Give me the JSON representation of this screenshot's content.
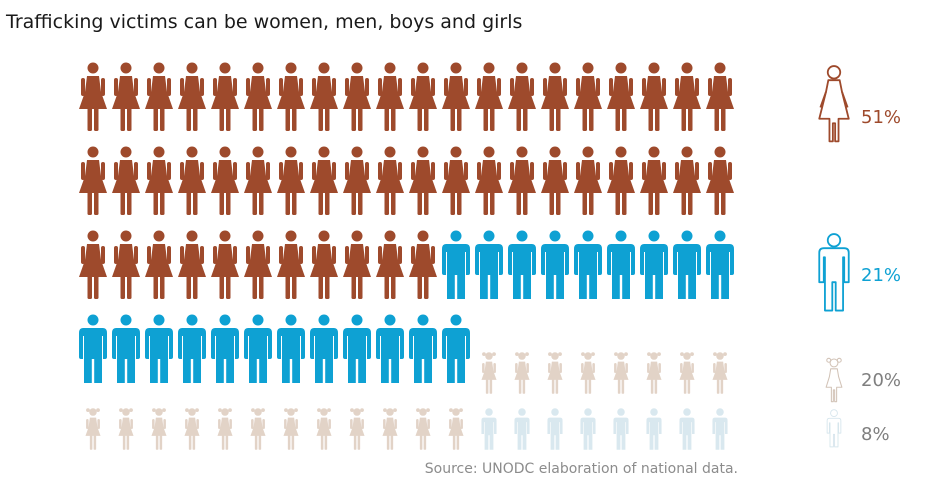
{
  "title": "Trafficking victims can be women, men, boys and girls",
  "source": "Source: UNODC elaboration of national data.",
  "colors": {
    "women": "#9e4a2c",
    "men": "#0ea1d3",
    "girls": "#e2d3c7",
    "boys": "#d9e8ef"
  },
  "chart_data": {
    "type": "pictogram",
    "total_icons": 100,
    "columns": 20,
    "categories": [
      "women",
      "men",
      "girls",
      "boys"
    ],
    "values": [
      51,
      21,
      20,
      8
    ],
    "labels": [
      "51%",
      "21%",
      "20%",
      "8%"
    ],
    "icons": [
      "woman-icon",
      "man-icon",
      "girl-icon",
      "boy-icon"
    ],
    "unit": "%"
  }
}
